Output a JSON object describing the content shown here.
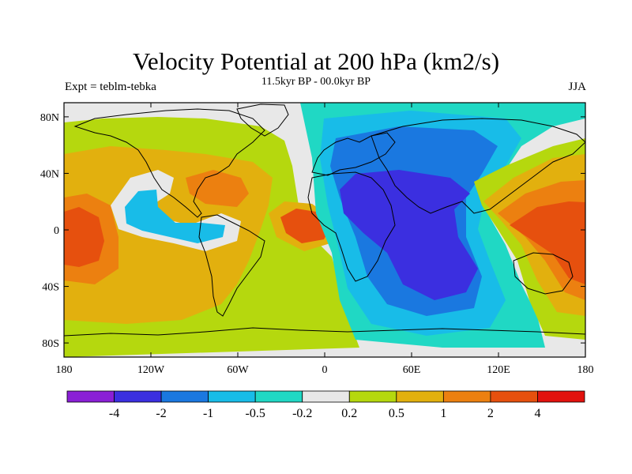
{
  "header": {
    "title": "Velocity Potential at 200 hPa (km2/s)",
    "subtitle": "11.5kyr BP - 00.0kyr BP",
    "left": "Expt = teblm-tebka",
    "right": "JJA"
  },
  "map": {
    "projection": "cylindrical-equidistant",
    "lon_range": [
      -180,
      180
    ],
    "lat_range": [
      -90,
      90
    ],
    "x_ticks": [
      {
        "value": -180,
        "label": "180"
      },
      {
        "value": -120,
        "label": "120W"
      },
      {
        "value": -60,
        "label": "60W"
      },
      {
        "value": 0,
        "label": "0"
      },
      {
        "value": 60,
        "label": "60E"
      },
      {
        "value": 120,
        "label": "120E"
      },
      {
        "value": 180,
        "label": "180"
      }
    ],
    "y_ticks": [
      {
        "value": 80,
        "label": "80N"
      },
      {
        "value": 40,
        "label": "40N"
      },
      {
        "value": 0,
        "label": "0"
      },
      {
        "value": -40,
        "label": "40S"
      },
      {
        "value": -80,
        "label": "80S"
      }
    ],
    "background_color": "#e8e8e8"
  },
  "colorbar": {
    "colors": [
      "#8a1fd6",
      "#3b2fe0",
      "#1a78e0",
      "#18bce8",
      "#20d8c4",
      "#e8e8e8",
      "#b5d80e",
      "#e2b00e",
      "#ec8010",
      "#e6500e",
      "#e2120e"
    ],
    "labels": [
      "-4",
      "-2",
      "-1",
      "-0.5",
      "-0.2",
      "0.2",
      "0.5",
      "1",
      "2",
      "4"
    ]
  }
}
